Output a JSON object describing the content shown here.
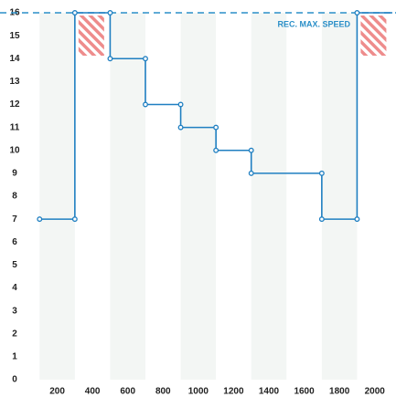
{
  "chart_data": {
    "type": "line",
    "x": [
      100,
      300,
      300,
      500,
      500,
      700,
      700,
      900,
      900,
      1100,
      1100,
      1300,
      1300,
      1700,
      1700,
      1900,
      1900,
      2100
    ],
    "series": [
      {
        "color": "#1f7fc1",
        "values": [
          7,
          7,
          16,
          16,
          14,
          14,
          12,
          12,
          11,
          11,
          10,
          10,
          9,
          9,
          7,
          7,
          16,
          16
        ]
      }
    ],
    "xlim": [
      0,
      2100
    ],
    "xticks": [
      200,
      400,
      600,
      800,
      1000,
      1200,
      1400,
      1600,
      1800,
      2000
    ],
    "ylim": [
      0,
      16
    ],
    "yticks": [
      0,
      1,
      2,
      3,
      4,
      5,
      6,
      7,
      8,
      9,
      10,
      11,
      12,
      13,
      14,
      15,
      16
    ],
    "reference_line": {
      "value": 16,
      "label": "REC. MAX. SPEED",
      "color": "#2a8fc8"
    },
    "hatch_color": "#ee8c8c"
  }
}
